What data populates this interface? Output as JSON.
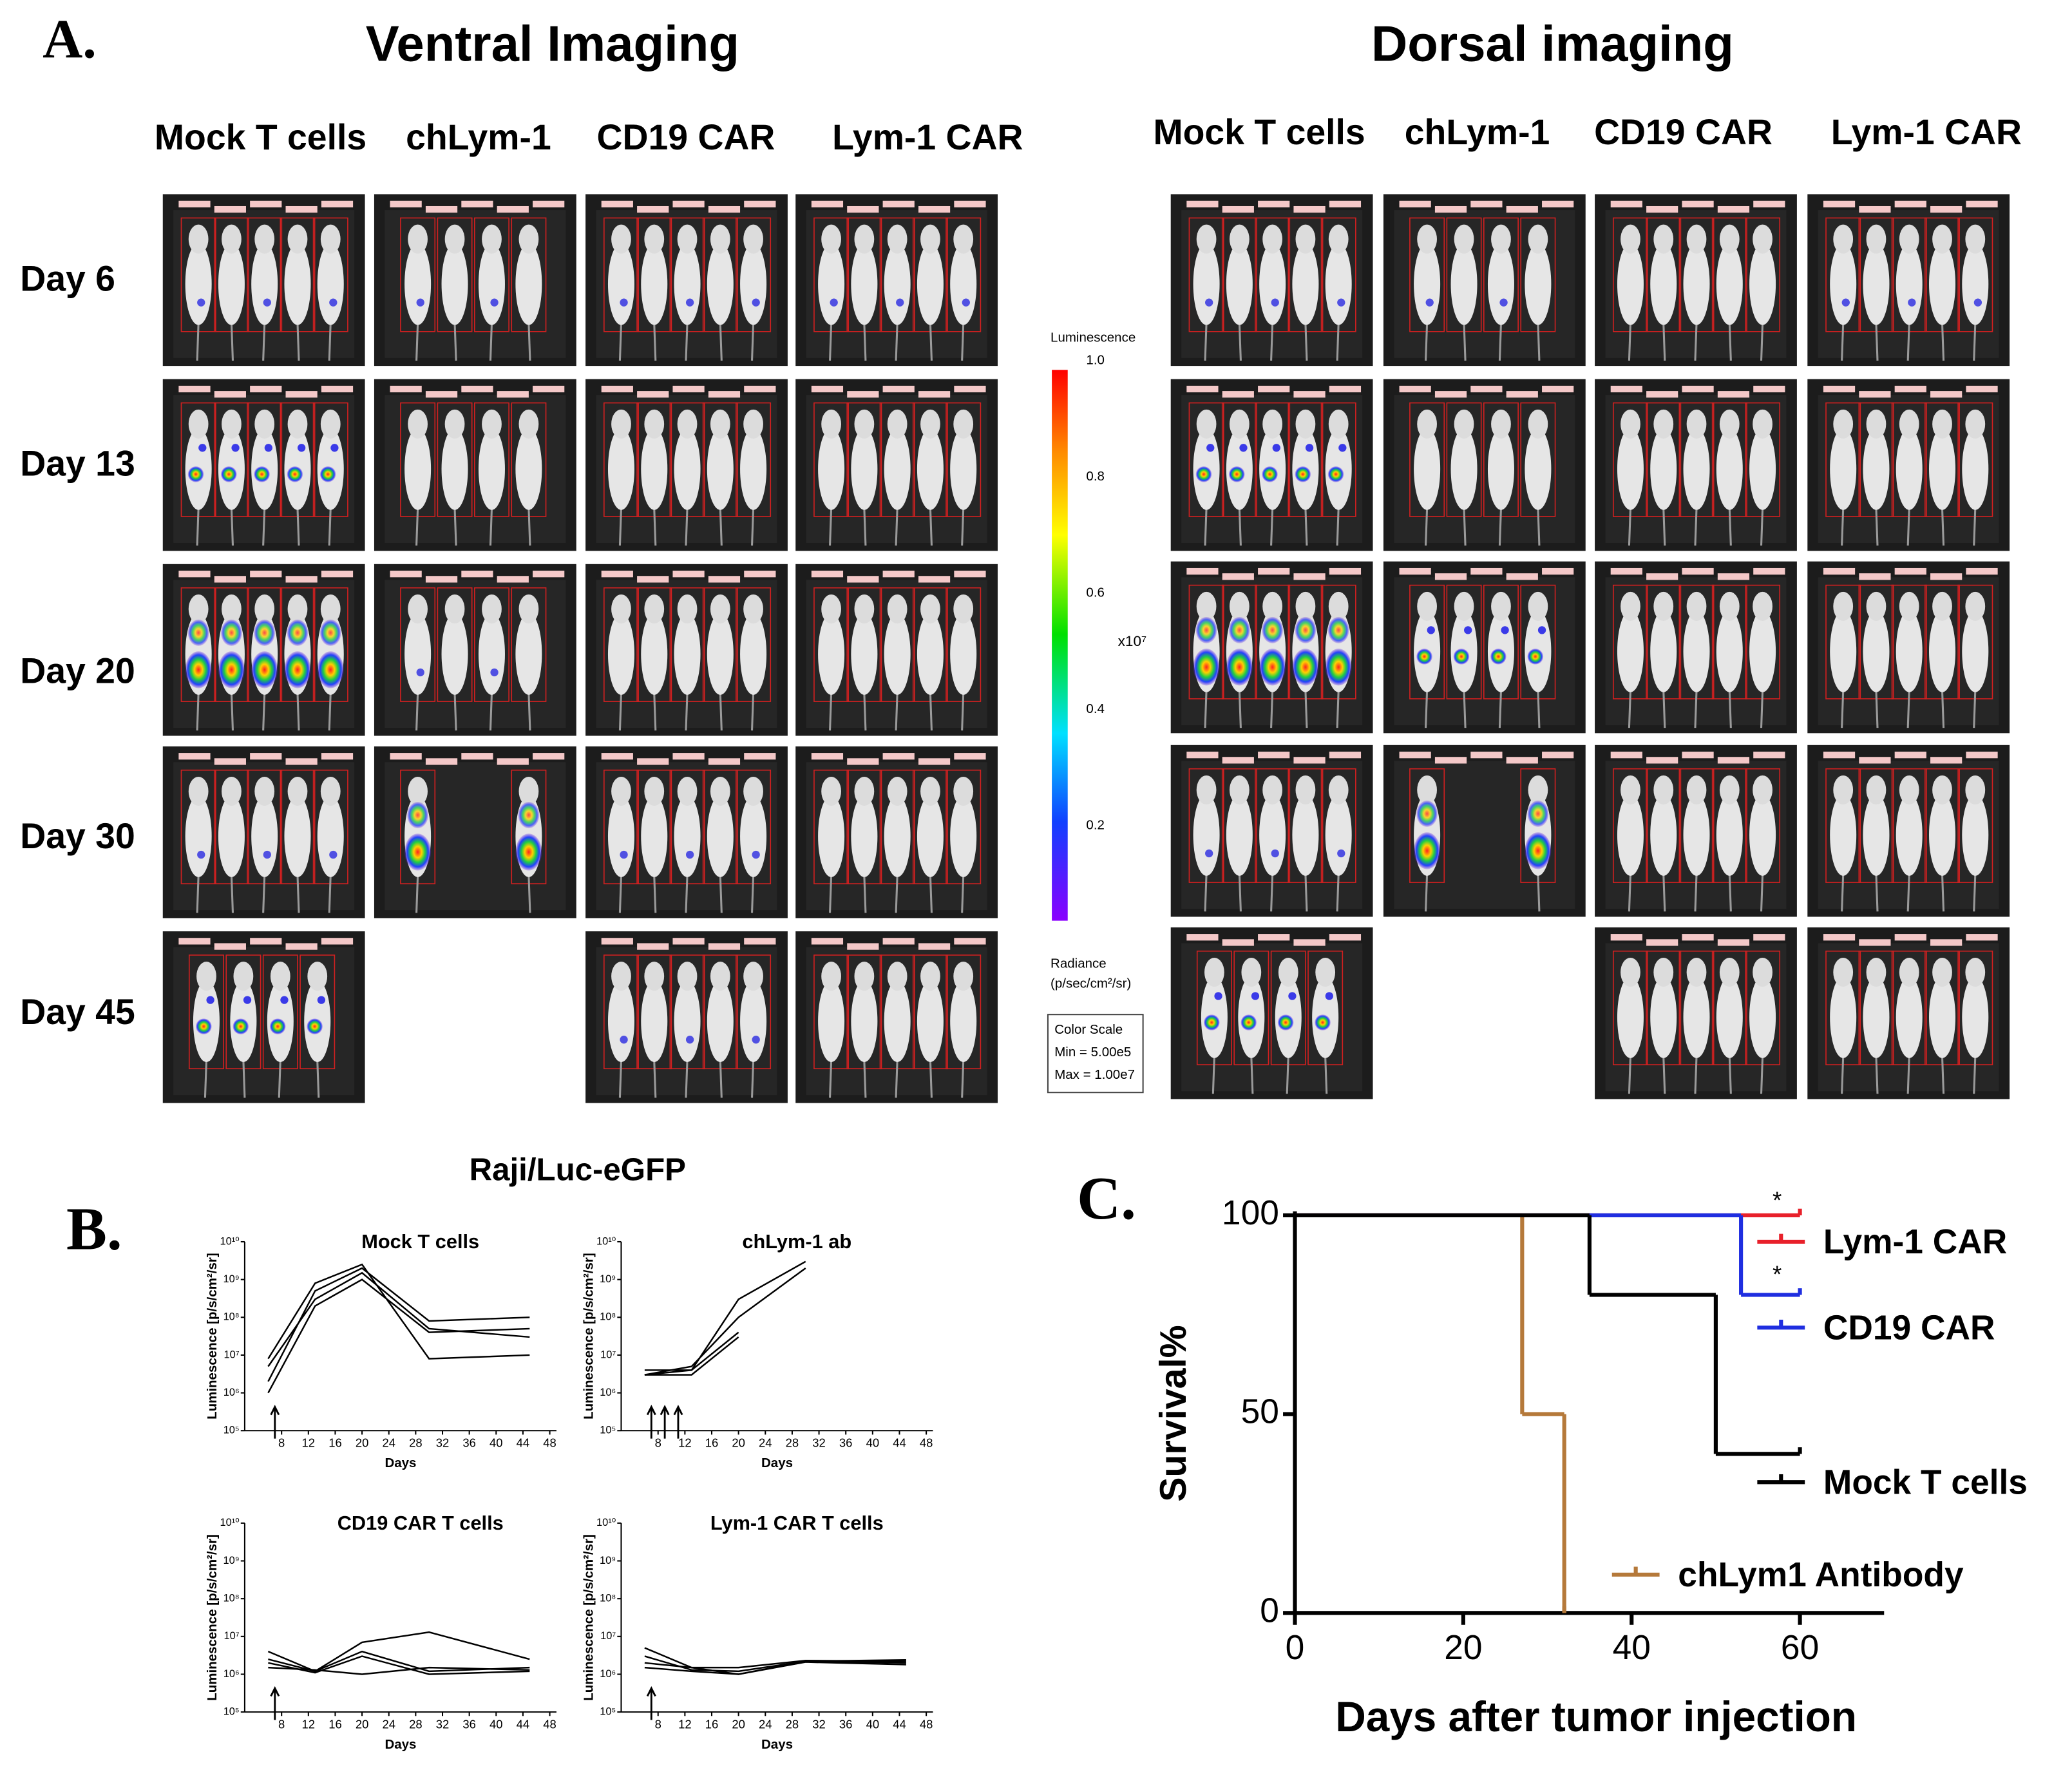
{
  "panel_a": {
    "label": "A.",
    "ventral": {
      "title": "Ventral Imaging",
      "columns": [
        "Mock  T cells",
        "chLym-1",
        "CD19 CAR",
        "Lym-1  CAR"
      ]
    },
    "dorsal": {
      "title": "Dorsal imaging",
      "columns": [
        "Mock  T cells",
        "chLym-1",
        "CD19 CAR",
        "Lym-1  CAR"
      ]
    },
    "rows": [
      "Day 6",
      "Day 13",
      "Day 20",
      "Day 30",
      "Day 45"
    ],
    "colorbar": {
      "title": "Luminescence",
      "ticks": [
        "1.0",
        "0.8",
        "0.6",
        "0.4",
        "0.2"
      ],
      "exponent": "x10⁷",
      "unit_title": "Radiance",
      "unit": "(p/sec/cm²/sr)",
      "scale_box": [
        "Color Scale",
        "Min = 5.00e5",
        "Max = 1.00e7"
      ]
    }
  },
  "panel_b": {
    "label": "B.",
    "title": "Raji/Luc-eGFP"
  },
  "panel_c": {
    "label": "C."
  },
  "chart_data": [
    {
      "type": "line",
      "title": "Mock T cells",
      "xlabel": "Days",
      "ylabel": "Luminescence [p/s/cm²/sr]",
      "x": [
        6,
        13,
        20,
        30,
        45
      ],
      "log_y": true,
      "arrows": [
        7
      ],
      "series": [
        {
          "color": "#000000",
          "values": [
            2000000,
            500000000,
            2000000000,
            80000000,
            100000000
          ]
        },
        {
          "color": "#000000",
          "values": [
            5000000,
            300000000,
            1500000000,
            50000000,
            30000000
          ]
        },
        {
          "color": "#000000",
          "values": [
            1000000,
            200000000,
            1000000000,
            40000000,
            50000000
          ]
        },
        {
          "color": "#000000",
          "values": [
            8000000,
            800000000,
            2500000000,
            8000000,
            10000000
          ]
        }
      ],
      "xlim": [
        2.5,
        49
      ],
      "xticks": [
        8,
        12,
        16,
        20,
        24,
        28,
        32,
        36,
        40,
        44,
        48
      ],
      "ylim": [
        100000,
        10000000000
      ],
      "yticks": [
        {
          "value": 100000,
          "label": "10⁵"
        },
        {
          "value": 1000000,
          "label": "10⁶"
        },
        {
          "value": 10000000,
          "label": "10⁷"
        },
        {
          "value": 100000000,
          "label": "10⁸"
        },
        {
          "value": 1000000000,
          "label": "10⁹"
        },
        {
          "value": 10000000000,
          "label": "10¹⁰"
        }
      ]
    },
    {
      "type": "line",
      "title": "chLym-1 ab",
      "xlabel": "Days",
      "ylabel": "Luminescence [p/s/cm²/sr]",
      "x": [
        6,
        13,
        20,
        30
      ],
      "log_y": true,
      "arrows": [
        7,
        9,
        11
      ],
      "series": [
        {
          "color": "#000000",
          "values": [
            3000000,
            4000000,
            300000000,
            3000000000
          ]
        },
        {
          "color": "#000000",
          "values": [
            3000000,
            5000000,
            100000000,
            2000000000
          ]
        },
        {
          "color": "#000000",
          "values": [
            4000000,
            4000000,
            40000000,
            null
          ]
        },
        {
          "color": "#000000",
          "values": [
            3000000,
            3000000,
            30000000,
            null
          ]
        }
      ],
      "xlim": [
        2.5,
        49
      ],
      "xticks": [
        8,
        12,
        16,
        20,
        24,
        28,
        32,
        36,
        40,
        44,
        48
      ],
      "ylim": [
        100000,
        10000000000
      ],
      "yticks": [
        {
          "value": 100000,
          "label": "10⁵"
        },
        {
          "value": 1000000,
          "label": "10⁶"
        },
        {
          "value": 10000000,
          "label": "10⁷"
        },
        {
          "value": 100000000,
          "label": "10⁸"
        },
        {
          "value": 1000000000,
          "label": "10⁹"
        },
        {
          "value": 10000000000,
          "label": "10¹⁰"
        }
      ]
    },
    {
      "type": "line",
      "title": "CD19 CAR T cells",
      "xlabel": "Days",
      "ylabel": "Luminescence [p/s/cm²/sr]",
      "x": [
        6,
        13,
        20,
        30,
        45
      ],
      "log_y": true,
      "arrows": [
        7
      ],
      "series": [
        {
          "color": "#000000",
          "values": [
            4000000,
            1200000,
            7000000,
            13000000,
            2500000
          ]
        },
        {
          "color": "#000000",
          "values": [
            2500000,
            1200000,
            4000000,
            1200000,
            1500000
          ]
        },
        {
          "color": "#000000",
          "values": [
            1500000,
            1300000,
            1000000,
            1500000,
            1300000
          ]
        },
        {
          "color": "#000000",
          "values": [
            2000000,
            1100000,
            3000000,
            1000000,
            1200000
          ]
        }
      ],
      "xlim": [
        2.5,
        49
      ],
      "xticks": [
        8,
        12,
        16,
        20,
        24,
        28,
        32,
        36,
        40,
        44,
        48
      ],
      "ylim": [
        100000,
        10000000000
      ],
      "yticks": [
        {
          "value": 100000,
          "label": "10⁵"
        },
        {
          "value": 1000000,
          "label": "10⁶"
        },
        {
          "value": 10000000,
          "label": "10⁷"
        },
        {
          "value": 100000000,
          "label": "10⁸"
        },
        {
          "value": 1000000000,
          "label": "10⁹"
        },
        {
          "value": 10000000000,
          "label": "10¹⁰"
        }
      ]
    },
    {
      "type": "line",
      "title": "Lym-1 CAR T cells",
      "xlabel": "Days",
      "ylabel": "Luminescence [p/s/cm²/sr]",
      "x": [
        6,
        13,
        20,
        30,
        45
      ],
      "log_y": true,
      "arrows": [
        7
      ],
      "series": [
        {
          "color": "#000000",
          "values": [
            5000000,
            1500000,
            1000000,
            2200000,
            2400000
          ]
        },
        {
          "color": "#000000",
          "values": [
            3000000,
            1300000,
            1200000,
            2200000,
            2000000
          ]
        },
        {
          "color": "#000000",
          "values": [
            2000000,
            1500000,
            1500000,
            2300000,
            2200000
          ]
        },
        {
          "color": "#000000",
          "values": [
            1500000,
            1200000,
            1000000,
            2100000,
            1800000
          ]
        }
      ],
      "xlim": [
        2.5,
        49
      ],
      "xticks": [
        8,
        12,
        16,
        20,
        24,
        28,
        32,
        36,
        40,
        44,
        48
      ],
      "ylim": [
        100000,
        10000000000
      ],
      "yticks": [
        {
          "value": 100000,
          "label": "10⁵"
        },
        {
          "value": 1000000,
          "label": "10⁶"
        },
        {
          "value": 10000000,
          "label": "10⁷"
        },
        {
          "value": 100000000,
          "label": "10⁸"
        },
        {
          "value": 1000000000,
          "label": "10⁹"
        },
        {
          "value": 10000000000,
          "label": "10¹⁰"
        }
      ]
    },
    {
      "type": "step",
      "xlabel": "Days after tumor injection",
      "ylabel": "Survival%",
      "xlim": [
        0,
        70
      ],
      "xticks": [
        0,
        20,
        40,
        60
      ],
      "ylim": [
        0,
        100
      ],
      "yticks": [
        0,
        50,
        100
      ],
      "series": [
        {
          "name": "Lym-1 CAR",
          "color": "#e8202a",
          "x": [
            0,
            60
          ],
          "values": [
            100,
            100
          ]
        },
        {
          "name": "CD19 CAR",
          "color": "#1f2ee0",
          "x": [
            0,
            53,
            60
          ],
          "values": [
            100,
            80,
            80
          ]
        },
        {
          "name": "Mock T cells",
          "color": "#000000",
          "x": [
            0,
            35,
            50,
            60
          ],
          "values": [
            100,
            80,
            40,
            40
          ]
        },
        {
          "name": "chLym1 Antibody",
          "color": "#b5793a",
          "x": [
            0,
            27,
            32
          ],
          "values": [
            100,
            50,
            0
          ]
        }
      ],
      "annotations": [
        "*",
        "*"
      ]
    }
  ]
}
